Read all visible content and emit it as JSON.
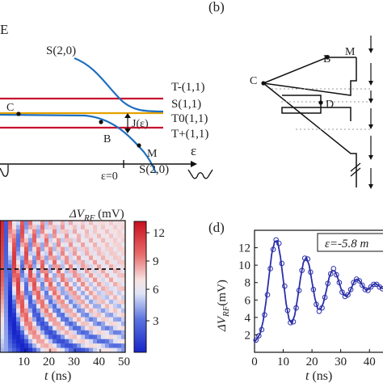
{
  "panel_a": {
    "axis_label_E": "E",
    "axis_label_eps": "ε",
    "eps_zero": "ε=0",
    "coupling": "J(ε)",
    "states": [
      {
        "label": "S(2,0)",
        "color": "#1f6fbf"
      },
      {
        "label": "T-(1,1)",
        "color": "#c8102e"
      },
      {
        "label": "S(1,1)",
        "color": "#1f6fbf"
      },
      {
        "label": "T0(1,1)",
        "color": "#e5a100"
      },
      {
        "label": "T+(1,1)",
        "color": "#c8102e"
      },
      {
        "label": "S(2,0)",
        "color": "#1f6fbf"
      }
    ],
    "points": {
      "C": "C",
      "B": "B",
      "M": "M"
    }
  },
  "panel_b": {
    "label": "(b)",
    "points": {
      "B": "B",
      "M": "M",
      "C": "C",
      "D": "D"
    }
  },
  "panel_c": {
    "colorbar_label": "ΔV",
    "colorbar_sub": "RF",
    "colorbar_unit": " (mV)",
    "colorbar_ticks": [
      "12",
      "9",
      "6",
      "3"
    ],
    "x_ticks": [
      "10",
      "20",
      "30",
      "40",
      "50"
    ],
    "x_label_var": "t",
    "x_label_unit": " (ns)"
  },
  "panel_d": {
    "label": "(d)",
    "legend": "ε=-5.8 m",
    "y_label_var": "ΔV",
    "y_label_sub": "RF",
    "y_label_unit": "(mV)",
    "x_label_var": "t",
    "x_label_unit": " (ns)",
    "chart_data": {
      "type": "scatter",
      "x_ticks": [
        "0",
        "10",
        "20",
        "30",
        "40"
      ],
      "y_ticks": [
        "2",
        "4",
        "6",
        "8",
        "10",
        "12"
      ],
      "xlim": [
        0,
        45
      ],
      "ylim": [
        0,
        14
      ],
      "xlabel": "t (ns)",
      "ylabel": "ΔV_RF (mV)",
      "series": [
        {
          "kind": "fit-line",
          "color": "#2b2fa8",
          "x": [
            0,
            1,
            2,
            3,
            4,
            5,
            6,
            7,
            8,
            9,
            10,
            11,
            12,
            13,
            14,
            15,
            16,
            17,
            18,
            19,
            20,
            21,
            22,
            23,
            24,
            25,
            26,
            27,
            28,
            29,
            30,
            31,
            32,
            33,
            34,
            35,
            36,
            37,
            38,
            39,
            40,
            41,
            42,
            43,
            44,
            45
          ],
          "y": [
            1.2,
            1.6,
            2.2,
            3.6,
            5.8,
            8.6,
            11.3,
            12.7,
            12.8,
            11.0,
            8.3,
            5.6,
            3.8,
            3.3,
            4.3,
            6.2,
            8.5,
            10.3,
            10.9,
            10.0,
            8.1,
            6.2,
            5.0,
            4.9,
            5.7,
            7.1,
            8.6,
            9.4,
            9.3,
            8.5,
            7.4,
            6.6,
            6.4,
            6.8,
            7.6,
            8.3,
            8.4,
            8.0,
            7.4,
            7.1,
            7.3,
            7.7,
            7.9,
            7.7,
            7.4,
            7.3
          ]
        },
        {
          "kind": "data-points",
          "color": "#2b2fa8",
          "x": [
            0.5,
            1.5,
            2.5,
            3.5,
            4.5,
            5.5,
            6.5,
            7.5,
            8.5,
            9.5,
            10.5,
            11.5,
            12.5,
            13.5,
            14.5,
            15.5,
            16.5,
            17.5,
            18.5,
            19.5,
            20.5,
            21.5,
            22.5,
            23.5,
            24.5,
            25.5,
            26.5,
            27.5,
            28.5,
            29.5,
            30.5,
            31.5,
            32.5,
            33.5,
            34.5,
            35.5,
            36.5,
            37.5,
            38.5,
            39.5,
            40.5,
            41.5,
            42.5,
            43.5,
            44.5
          ],
          "y": [
            1.4,
            1.9,
            2.6,
            4.3,
            6.6,
            9.6,
            11.8,
            12.9,
            12.5,
            10.2,
            7.6,
            4.8,
            3.4,
            3.5,
            5.1,
            7.1,
            9.4,
            10.8,
            10.7,
            9.2,
            7.2,
            5.5,
            4.7,
            5.1,
            6.3,
            7.9,
            9.0,
            9.6,
            8.9,
            8.0,
            6.9,
            6.4,
            6.6,
            7.2,
            8.0,
            8.4,
            8.2,
            7.7,
            7.2,
            7.1,
            7.5,
            7.8,
            7.8,
            7.5,
            7.3
          ]
        }
      ]
    }
  }
}
